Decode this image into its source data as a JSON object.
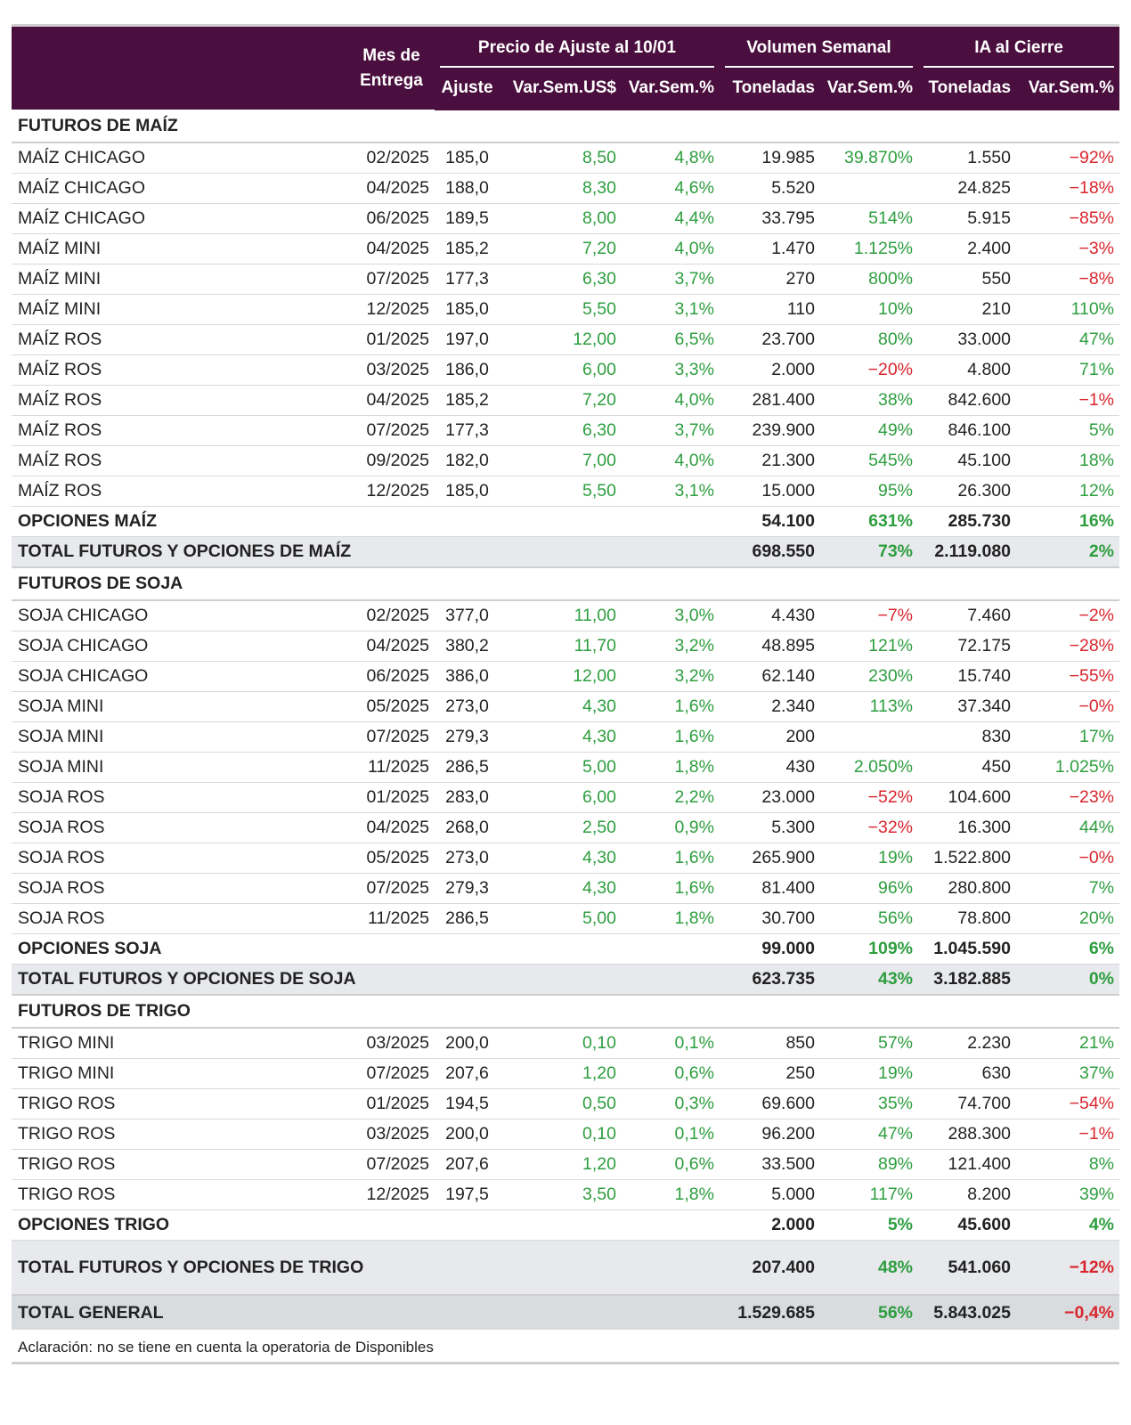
{
  "header": {
    "mes": "Mes de Entrega",
    "precio_group": "Precio de Ajuste al 10/01",
    "volumen_group": "Volumen Semanal",
    "ia_group": "IA al Cierre",
    "ajuste": "Ajuste",
    "var_sem_us": "Var.Sem.US$",
    "var_sem_pct": "Var.Sem.%",
    "toneladas": "Toneladas",
    "vol_var_pct": "Var.Sem.%",
    "ia_toneladas": "Toneladas",
    "ia_var_pct": "Var.Sem.%"
  },
  "rows": [
    {
      "type": "section",
      "name": "FUTUROS DE MAÍZ"
    },
    {
      "type": "data",
      "name": "MAÍZ CHICAGO",
      "mes": "02/2025",
      "ajuste": "185,0",
      "var_us": "8,50",
      "var_pct": "4,8%",
      "ton": "19.985",
      "vol_var": "39.870%",
      "ia_ton": "1.550",
      "ia_var": "-92%"
    },
    {
      "type": "data",
      "name": "MAÍZ CHICAGO",
      "mes": "04/2025",
      "ajuste": "188,0",
      "var_us": "8,30",
      "var_pct": "4,6%",
      "ton": "5.520",
      "vol_var": "",
      "ia_ton": "24.825",
      "ia_var": "-18%"
    },
    {
      "type": "data",
      "name": "MAÍZ CHICAGO",
      "mes": "06/2025",
      "ajuste": "189,5",
      "var_us": "8,00",
      "var_pct": "4,4%",
      "ton": "33.795",
      "vol_var": "514%",
      "ia_ton": "5.915",
      "ia_var": "-85%"
    },
    {
      "type": "data",
      "name": "MAÍZ MINI",
      "mes": "04/2025",
      "ajuste": "185,2",
      "var_us": "7,20",
      "var_pct": "4,0%",
      "ton": "1.470",
      "vol_var": "1.125%",
      "ia_ton": "2.400",
      "ia_var": "-3%"
    },
    {
      "type": "data",
      "name": "MAÍZ MINI",
      "mes": "07/2025",
      "ajuste": "177,3",
      "var_us": "6,30",
      "var_pct": "3,7%",
      "ton": "270",
      "vol_var": "800%",
      "ia_ton": "550",
      "ia_var": "-8%"
    },
    {
      "type": "data",
      "name": "MAÍZ MINI",
      "mes": "12/2025",
      "ajuste": "185,0",
      "var_us": "5,50",
      "var_pct": "3,1%",
      "ton": "110",
      "vol_var": "10%",
      "ia_ton": "210",
      "ia_var": "110%"
    },
    {
      "type": "data",
      "name": "MAÍZ ROS",
      "mes": "01/2025",
      "ajuste": "197,0",
      "var_us": "12,00",
      "var_pct": "6,5%",
      "ton": "23.700",
      "vol_var": "80%",
      "ia_ton": "33.000",
      "ia_var": "47%"
    },
    {
      "type": "data",
      "name": "MAÍZ ROS",
      "mes": "03/2025",
      "ajuste": "186,0",
      "var_us": "6,00",
      "var_pct": "3,3%",
      "ton": "2.000",
      "vol_var": "-20%",
      "ia_ton": "4.800",
      "ia_var": "71%"
    },
    {
      "type": "data",
      "name": "MAÍZ ROS",
      "mes": "04/2025",
      "ajuste": "185,2",
      "var_us": "7,20",
      "var_pct": "4,0%",
      "ton": "281.400",
      "vol_var": "38%",
      "ia_ton": "842.600",
      "ia_var": "-1%"
    },
    {
      "type": "data",
      "name": "MAÍZ ROS",
      "mes": "07/2025",
      "ajuste": "177,3",
      "var_us": "6,30",
      "var_pct": "3,7%",
      "ton": "239.900",
      "vol_var": "49%",
      "ia_ton": "846.100",
      "ia_var": "5%"
    },
    {
      "type": "data",
      "name": "MAÍZ ROS",
      "mes": "09/2025",
      "ajuste": "182,0",
      "var_us": "7,00",
      "var_pct": "4,0%",
      "ton": "21.300",
      "vol_var": "545%",
      "ia_ton": "45.100",
      "ia_var": "18%"
    },
    {
      "type": "data",
      "name": "MAÍZ ROS",
      "mes": "12/2025",
      "ajuste": "185,0",
      "var_us": "5,50",
      "var_pct": "3,1%",
      "ton": "15.000",
      "vol_var": "95%",
      "ia_ton": "26.300",
      "ia_var": "12%"
    },
    {
      "type": "opc",
      "name": "OPCIONES MAÍZ",
      "ton": "54.100",
      "vol_var": "631%",
      "ia_ton": "285.730",
      "ia_var": "16%"
    },
    {
      "type": "total",
      "name": "TOTAL FUTUROS Y OPCIONES DE MAÍZ",
      "ton": "698.550",
      "vol_var": "73%",
      "ia_ton": "2.119.080",
      "ia_var": "2%"
    },
    {
      "type": "section",
      "name": "FUTUROS DE SOJA"
    },
    {
      "type": "data",
      "name": "SOJA CHICAGO",
      "mes": "02/2025",
      "ajuste": "377,0",
      "var_us": "11,00",
      "var_pct": "3,0%",
      "ton": "4.430",
      "vol_var": "-7%",
      "ia_ton": "7.460",
      "ia_var": "-2%"
    },
    {
      "type": "data",
      "name": "SOJA CHICAGO",
      "mes": "04/2025",
      "ajuste": "380,2",
      "var_us": "11,70",
      "var_pct": "3,2%",
      "ton": "48.895",
      "vol_var": "121%",
      "ia_ton": "72.175",
      "ia_var": "-28%"
    },
    {
      "type": "data",
      "name": "SOJA CHICAGO",
      "mes": "06/2025",
      "ajuste": "386,0",
      "var_us": "12,00",
      "var_pct": "3,2%",
      "ton": "62.140",
      "vol_var": "230%",
      "ia_ton": "15.740",
      "ia_var": "-55%"
    },
    {
      "type": "data",
      "name": "SOJA MINI",
      "mes": "05/2025",
      "ajuste": "273,0",
      "var_us": "4,30",
      "var_pct": "1,6%",
      "ton": "2.340",
      "vol_var": "113%",
      "ia_ton": "37.340",
      "ia_var": "-0%"
    },
    {
      "type": "data",
      "name": "SOJA MINI",
      "mes": "07/2025",
      "ajuste": "279,3",
      "var_us": "4,30",
      "var_pct": "1,6%",
      "ton": "200",
      "vol_var": "",
      "ia_ton": "830",
      "ia_var": "17%"
    },
    {
      "type": "data",
      "name": "SOJA MINI",
      "mes": "11/2025",
      "ajuste": "286,5",
      "var_us": "5,00",
      "var_pct": "1,8%",
      "ton": "430",
      "vol_var": "2.050%",
      "ia_ton": "450",
      "ia_var": "1.025%"
    },
    {
      "type": "data",
      "name": "SOJA ROS",
      "mes": "01/2025",
      "ajuste": "283,0",
      "var_us": "6,00",
      "var_pct": "2,2%",
      "ton": "23.000",
      "vol_var": "-52%",
      "ia_ton": "104.600",
      "ia_var": "-23%"
    },
    {
      "type": "data",
      "name": "SOJA ROS",
      "mes": "04/2025",
      "ajuste": "268,0",
      "var_us": "2,50",
      "var_pct": "0,9%",
      "ton": "5.300",
      "vol_var": "-32%",
      "ia_ton": "16.300",
      "ia_var": "44%"
    },
    {
      "type": "data",
      "name": "SOJA ROS",
      "mes": "05/2025",
      "ajuste": "273,0",
      "var_us": "4,30",
      "var_pct": "1,6%",
      "ton": "265.900",
      "vol_var": "19%",
      "ia_ton": "1.522.800",
      "ia_var": "-0%"
    },
    {
      "type": "data",
      "name": "SOJA ROS",
      "mes": "07/2025",
      "ajuste": "279,3",
      "var_us": "4,30",
      "var_pct": "1,6%",
      "ton": "81.400",
      "vol_var": "96%",
      "ia_ton": "280.800",
      "ia_var": "7%"
    },
    {
      "type": "data",
      "name": "SOJA ROS",
      "mes": "11/2025",
      "ajuste": "286,5",
      "var_us": "5,00",
      "var_pct": "1,8%",
      "ton": "30.700",
      "vol_var": "56%",
      "ia_ton": "78.800",
      "ia_var": "20%"
    },
    {
      "type": "opc",
      "name": "OPCIONES SOJA",
      "ton": "99.000",
      "vol_var": "109%",
      "ia_ton": "1.045.590",
      "ia_var": "6%"
    },
    {
      "type": "total",
      "name": "TOTAL FUTUROS Y OPCIONES DE SOJA",
      "ton": "623.735",
      "vol_var": "43%",
      "ia_ton": "3.182.885",
      "ia_var": "0%"
    },
    {
      "type": "section",
      "name": "FUTUROS DE TRIGO"
    },
    {
      "type": "data",
      "name": "TRIGO MINI",
      "mes": "03/2025",
      "ajuste": "200,0",
      "var_us": "0,10",
      "var_pct": "0,1%",
      "ton": "850",
      "vol_var": "57%",
      "ia_ton": "2.230",
      "ia_var": "21%"
    },
    {
      "type": "data",
      "name": "TRIGO MINI",
      "mes": "07/2025",
      "ajuste": "207,6",
      "var_us": "1,20",
      "var_pct": "0,6%",
      "ton": "250",
      "vol_var": "19%",
      "ia_ton": "630",
      "ia_var": "37%"
    },
    {
      "type": "data",
      "name": "TRIGO ROS",
      "mes": "01/2025",
      "ajuste": "194,5",
      "var_us": "0,50",
      "var_pct": "0,3%",
      "ton": "69.600",
      "vol_var": "35%",
      "ia_ton": "74.700",
      "ia_var": "-54%"
    },
    {
      "type": "data",
      "name": "TRIGO ROS",
      "mes": "03/2025",
      "ajuste": "200,0",
      "var_us": "0,10",
      "var_pct": "0,1%",
      "ton": "96.200",
      "vol_var": "47%",
      "ia_ton": "288.300",
      "ia_var": "-1%"
    },
    {
      "type": "data",
      "name": "TRIGO ROS",
      "mes": "07/2025",
      "ajuste": "207,6",
      "var_us": "1,20",
      "var_pct": "0,6%",
      "ton": "33.500",
      "vol_var": "89%",
      "ia_ton": "121.400",
      "ia_var": "8%"
    },
    {
      "type": "data",
      "name": "TRIGO ROS",
      "mes": "12/2025",
      "ajuste": "197,5",
      "var_us": "3,50",
      "var_pct": "1,8%",
      "ton": "5.000",
      "vol_var": "117%",
      "ia_ton": "8.200",
      "ia_var": "39%"
    },
    {
      "type": "opc",
      "name": "OPCIONES TRIGO",
      "ton": "2.000",
      "vol_var": "5%",
      "ia_ton": "45.600",
      "ia_var": "4%"
    },
    {
      "type": "total",
      "tall": true,
      "name": "TOTAL FUTUROS Y OPCIONES DE TRIGO",
      "ton": "207.400",
      "vol_var": "48%",
      "ia_ton": "541.060",
      "ia_var": "-12%"
    },
    {
      "type": "grand",
      "name": "TOTAL GENERAL",
      "ton": "1.529.685",
      "vol_var": "56%",
      "ia_ton": "5.843.025",
      "ia_var": "-0,4%"
    }
  ],
  "note": "Aclaración: no se tiene en cuenta la operatoria de Disponibles",
  "colors": {
    "header_bg": "#4a0f3e",
    "positive": "#2e9e3f",
    "negative": "#d9262e",
    "total_bg": "#e7e9ec",
    "grand_bg": "#d9dcdf"
  }
}
